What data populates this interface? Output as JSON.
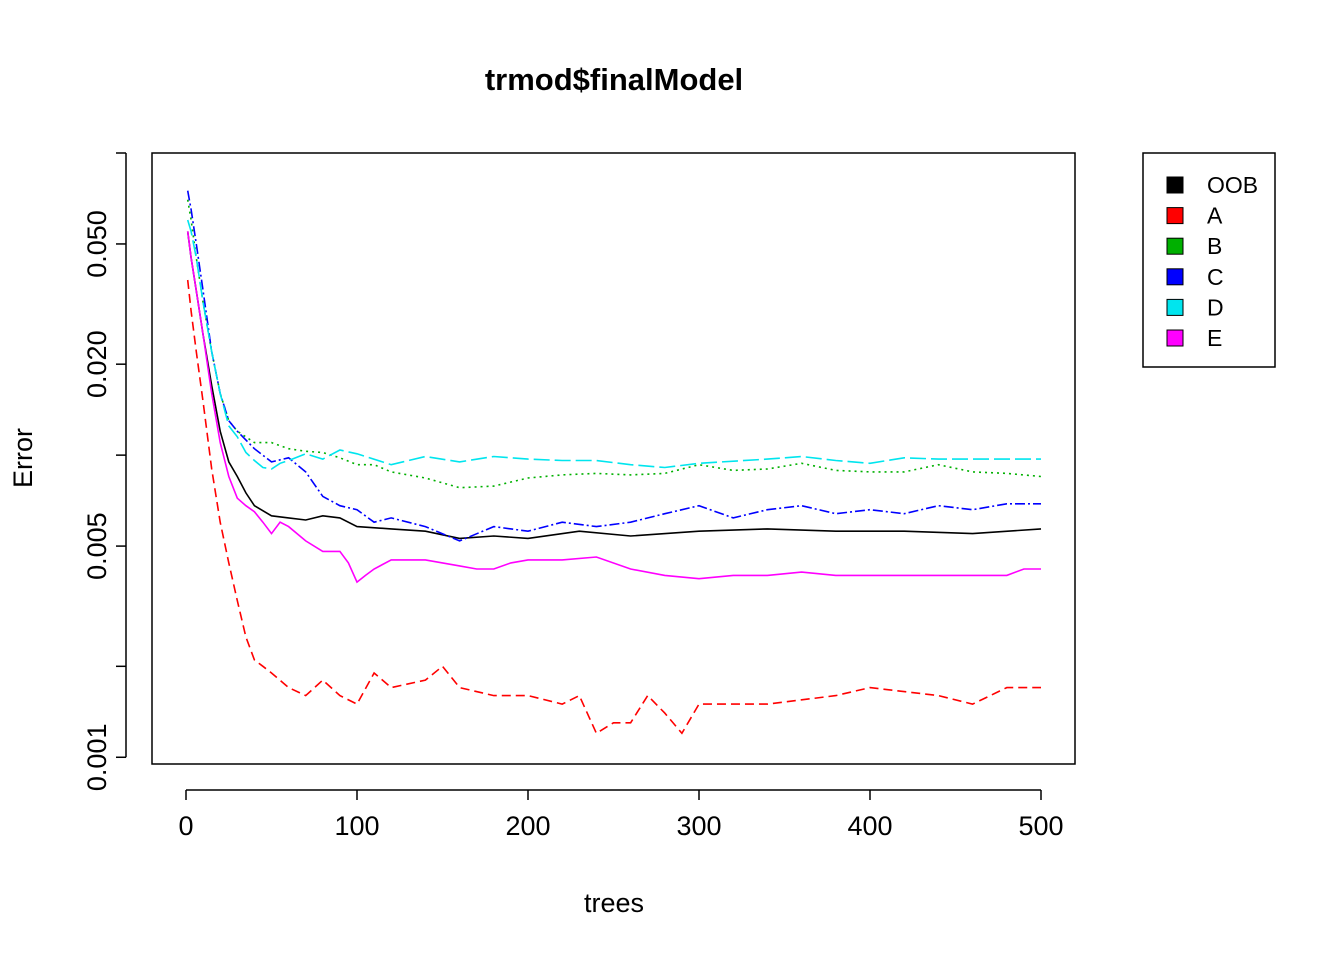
{
  "chart_data": {
    "type": "line",
    "title": "trmod$finalModel",
    "xlabel": "trees",
    "ylabel": "Error",
    "xlim": [
      0,
      500
    ],
    "ylim": [
      0.00095,
      0.1
    ],
    "y_scale": "log",
    "x_ticks": [
      "0",
      "100",
      "200",
      "300",
      "400",
      "500"
    ],
    "y_ticks": [
      "0.001",
      "0.005",
      "0.020",
      "0.050"
    ],
    "y_tick_values": [
      0.001,
      0.002,
      0.005,
      0.01,
      0.02,
      0.05,
      0.1
    ],
    "grid": false,
    "legend": "outside-top-right",
    "series": [
      {
        "name": "OOB",
        "color": "#000000",
        "dash": "",
        "x": [
          1,
          3,
          6,
          10,
          15,
          20,
          25,
          30,
          35,
          40,
          50,
          60,
          70,
          80,
          90,
          100,
          120,
          140,
          160,
          180,
          200,
          230,
          260,
          300,
          340,
          380,
          420,
          460,
          500
        ],
        "y": [
          0.055,
          0.045,
          0.035,
          0.025,
          0.017,
          0.012,
          0.0095,
          0.0085,
          0.0075,
          0.0068,
          0.0063,
          0.0062,
          0.0061,
          0.0063,
          0.0062,
          0.0058,
          0.0057,
          0.0056,
          0.0053,
          0.0054,
          0.0053,
          0.0056,
          0.0054,
          0.0056,
          0.0057,
          0.0056,
          0.0056,
          0.0055,
          0.0057
        ]
      },
      {
        "name": "A",
        "color": "#ff0000",
        "dash": "9,5",
        "x": [
          1,
          3,
          6,
          10,
          15,
          20,
          25,
          30,
          35,
          40,
          45,
          50,
          60,
          70,
          80,
          90,
          100,
          110,
          120,
          140,
          150,
          160,
          180,
          200,
          220,
          230,
          240,
          250,
          260,
          270,
          280,
          290,
          300,
          340,
          380,
          400,
          440,
          460,
          480,
          500
        ],
        "y": [
          0.038,
          0.03,
          0.022,
          0.015,
          0.009,
          0.006,
          0.0044,
          0.0033,
          0.0025,
          0.0021,
          0.002,
          0.0019,
          0.0017,
          0.0016,
          0.0018,
          0.0016,
          0.0015,
          0.0019,
          0.0017,
          0.0018,
          0.002,
          0.0017,
          0.0016,
          0.0016,
          0.0015,
          0.0016,
          0.0012,
          0.0013,
          0.0013,
          0.0016,
          0.0014,
          0.0012,
          0.0015,
          0.0015,
          0.0016,
          0.0017,
          0.0016,
          0.0015,
          0.0017,
          0.0017
        ]
      },
      {
        "name": "B",
        "color": "#00b000",
        "dash": "2,4",
        "x": [
          1,
          3,
          6,
          10,
          15,
          20,
          25,
          30,
          40,
          50,
          60,
          70,
          80,
          90,
          100,
          110,
          120,
          140,
          160,
          180,
          200,
          220,
          240,
          260,
          280,
          300,
          320,
          340,
          360,
          380,
          400,
          420,
          440,
          460,
          480,
          500
        ],
        "y": [
          0.07,
          0.06,
          0.045,
          0.032,
          0.022,
          0.016,
          0.013,
          0.012,
          0.011,
          0.011,
          0.0105,
          0.0103,
          0.0102,
          0.0098,
          0.0093,
          0.0093,
          0.0088,
          0.0084,
          0.0078,
          0.0079,
          0.0084,
          0.0086,
          0.0087,
          0.0086,
          0.0087,
          0.0093,
          0.0089,
          0.009,
          0.0094,
          0.0089,
          0.0088,
          0.0088,
          0.0093,
          0.0088,
          0.0087,
          0.0085
        ]
      },
      {
        "name": "C",
        "color": "#0000ff",
        "dash": "10,3,2,3",
        "x": [
          1,
          3,
          6,
          10,
          15,
          20,
          25,
          30,
          40,
          50,
          60,
          70,
          80,
          90,
          100,
          110,
          120,
          140,
          160,
          180,
          200,
          220,
          240,
          260,
          280,
          300,
          320,
          340,
          360,
          380,
          400,
          420,
          440,
          460,
          480,
          500
        ],
        "y": [
          0.075,
          0.065,
          0.05,
          0.035,
          0.022,
          0.016,
          0.013,
          0.012,
          0.0105,
          0.0095,
          0.0098,
          0.0088,
          0.0073,
          0.0068,
          0.0066,
          0.006,
          0.0062,
          0.0058,
          0.0052,
          0.0058,
          0.0056,
          0.006,
          0.0058,
          0.006,
          0.0064,
          0.0068,
          0.0062,
          0.0066,
          0.0068,
          0.0064,
          0.0066,
          0.0064,
          0.0068,
          0.0066,
          0.0069,
          0.0069
        ]
      },
      {
        "name": "D",
        "color": "#00e5ee",
        "dash": "16,5",
        "x": [
          1,
          3,
          6,
          10,
          15,
          20,
          25,
          30,
          35,
          40,
          45,
          50,
          55,
          60,
          70,
          80,
          90,
          100,
          120,
          140,
          160,
          180,
          200,
          220,
          240,
          260,
          280,
          300,
          340,
          360,
          380,
          400,
          420,
          440,
          460,
          480,
          500
        ],
        "y": [
          0.06,
          0.055,
          0.045,
          0.032,
          0.022,
          0.016,
          0.0125,
          0.0115,
          0.0102,
          0.0096,
          0.0091,
          0.009,
          0.0094,
          0.0096,
          0.0101,
          0.0097,
          0.0104,
          0.0101,
          0.0093,
          0.0099,
          0.0095,
          0.0099,
          0.0097,
          0.0096,
          0.0096,
          0.0093,
          0.0091,
          0.0094,
          0.0097,
          0.0099,
          0.0096,
          0.0094,
          0.0098,
          0.0097,
          0.0097,
          0.0097,
          0.0097
        ]
      },
      {
        "name": "E",
        "color": "#ff00ff",
        "dash": "",
        "x": [
          1,
          3,
          6,
          10,
          15,
          20,
          25,
          30,
          35,
          40,
          45,
          50,
          55,
          60,
          70,
          80,
          90,
          95,
          100,
          105,
          110,
          120,
          140,
          160,
          170,
          180,
          190,
          200,
          220,
          240,
          260,
          280,
          300,
          320,
          340,
          360,
          380,
          400,
          420,
          440,
          460,
          480,
          490,
          500
        ],
        "y": [
          0.055,
          0.045,
          0.035,
          0.025,
          0.016,
          0.011,
          0.0085,
          0.0072,
          0.0068,
          0.0065,
          0.006,
          0.0055,
          0.006,
          0.0058,
          0.0052,
          0.0048,
          0.0048,
          0.0044,
          0.0038,
          0.004,
          0.0042,
          0.0045,
          0.0045,
          0.0043,
          0.0042,
          0.0042,
          0.0044,
          0.0045,
          0.0045,
          0.0046,
          0.0042,
          0.004,
          0.0039,
          0.004,
          0.004,
          0.0041,
          0.004,
          0.004,
          0.004,
          0.004,
          0.004,
          0.004,
          0.0042,
          0.0042
        ]
      }
    ]
  }
}
